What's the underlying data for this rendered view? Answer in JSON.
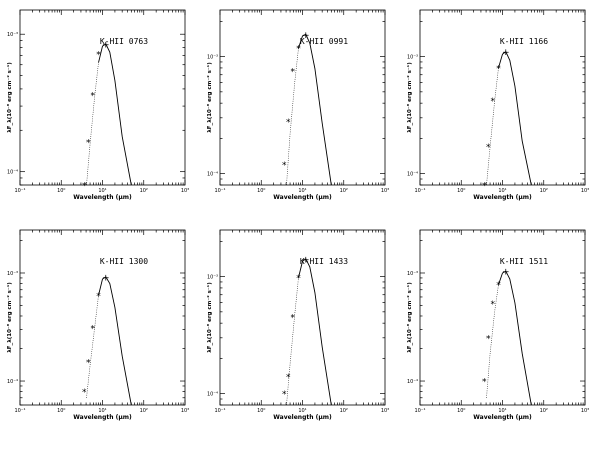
{
  "chart_data": [
    {
      "type": "line",
      "title": "K-HII 0763",
      "xlabel": "Wavelength (μm)",
      "ylabel": "λF_λ(10⁻⁸ erg cm⁻² s⁻¹)",
      "xscale": "log",
      "yscale": "log",
      "xlim": [
        0.1,
        1000
      ],
      "ylim": [
        8e-05,
        0.0015
      ],
      "xticks": [
        "10⁻¹",
        "10⁰",
        "10¹",
        "10²",
        "10³"
      ],
      "yticks": [
        "10⁻⁴",
        "10⁻³"
      ],
      "series": [
        {
          "x": [
            3.6,
            4.5,
            5.8,
            8.0
          ],
          "y": [
            8e-05,
            0.000165,
            0.00036,
            0.00072
          ]
        },
        {
          "x": [
            4.1,
            5.0,
            6.5,
            8.0,
            10,
            12,
            15,
            20,
            30,
            50
          ],
          "y": [
            8e-05,
            0.00016,
            0.00036,
            0.00062,
            0.00082,
            0.00085,
            0.00074,
            0.00046,
            0.00018,
            8e-05
          ]
        }
      ]
    },
    {
      "type": "line",
      "title": "K-HII 0991",
      "xlabel": "Wavelength (μm)",
      "ylabel": "λF_λ(10⁻⁸ erg cm⁻² s⁻¹)",
      "xscale": "log",
      "yscale": "log",
      "xlim": [
        0.1,
        1000
      ],
      "ylim": [
        8e-05,
        0.0025
      ],
      "xticks": [
        "10⁻¹",
        "10⁰",
        "10¹",
        "10²",
        "10³"
      ],
      "yticks": [
        "10⁻⁴",
        "10⁻³"
      ],
      "series": [
        {
          "x": [
            3.6,
            4.5,
            5.8,
            8.0
          ],
          "y": [
            0.00012,
            0.00028,
            0.00075,
            0.00118
          ]
        },
        {
          "x": [
            4.1,
            5.0,
            6.5,
            8.0,
            10,
            12,
            15,
            20,
            30,
            50
          ],
          "y": [
            8e-05,
            0.00022,
            0.00061,
            0.00118,
            0.0015,
            0.00155,
            0.0013,
            0.00079,
            0.00027,
            8e-05
          ]
        }
      ]
    },
    {
      "type": "line",
      "title": "K-HII 1166",
      "xlabel": "Wavelength (μm)",
      "ylabel": "λF_λ(10⁻⁸ erg cm⁻² s⁻¹)",
      "xscale": "log",
      "yscale": "log",
      "xlim": [
        0.1,
        1000
      ],
      "ylim": [
        8e-05,
        0.0025
      ],
      "xticks": [
        "10⁻¹",
        "10⁰",
        "10¹",
        "10²",
        "10³"
      ],
      "yticks": [
        "10⁻⁴",
        "10⁻³"
      ],
      "series": [
        {
          "x": [
            3.6,
            4.5,
            5.8,
            8.0
          ],
          "y": [
            8e-05,
            0.00017,
            0.00042,
            0.0008
          ]
        },
        {
          "x": [
            4.1,
            5.0,
            6.5,
            8.0,
            10,
            12,
            15,
            20,
            30,
            50
          ],
          "y": [
            8e-05,
            0.00017,
            0.00043,
            0.0008,
            0.00105,
            0.0011,
            0.00093,
            0.00056,
            0.00019,
            8e-05
          ]
        }
      ]
    },
    {
      "type": "line",
      "title": "K-HII 1300",
      "xlabel": "Wavelength (μm)",
      "ylabel": "λF_λ(10⁻⁸ erg cm⁻² s⁻¹)",
      "xscale": "log",
      "yscale": "log",
      "xlim": [
        0.1,
        1000
      ],
      "ylim": [
        6e-05,
        0.0025
      ],
      "xticks": [
        "10⁻¹",
        "10⁰",
        "10¹",
        "10²",
        "10³"
      ],
      "yticks": [
        "10⁻⁴",
        "10⁻³"
      ],
      "series": [
        {
          "x": [
            3.6,
            4.5,
            5.8,
            8.0
          ],
          "y": [
            8e-05,
            0.00015,
            0.00031,
            0.00062
          ]
        },
        {
          "x": [
            4.1,
            5.0,
            6.5,
            8.0,
            10,
            12,
            15,
            20,
            30,
            50
          ],
          "y": [
            7e-05,
            0.00014,
            0.00032,
            0.00062,
            0.00088,
            0.00092,
            0.0008,
            0.00048,
            0.00017,
            6e-05
          ]
        }
      ]
    },
    {
      "type": "line",
      "title": "K-HII 1433",
      "xlabel": "Wavelength (μm)",
      "ylabel": "λF_λ(10⁻⁸ erg cm⁻² s⁻¹)",
      "xscale": "log",
      "yscale": "log",
      "xlim": [
        0.1,
        1000
      ],
      "ylim": [
        8e-05,
        0.0025
      ],
      "xticks": [
        "10⁻¹",
        "10⁰",
        "10¹",
        "10²",
        "10³"
      ],
      "yticks": [
        "10⁻⁴",
        "10⁻³"
      ],
      "series": [
        {
          "x": [
            3.6,
            4.5,
            5.8,
            8.0
          ],
          "y": [
            0.0001,
            0.00014,
            0.00045,
            0.00098
          ]
        },
        {
          "x": [
            4.1,
            5.0,
            6.5,
            8.0,
            10,
            12,
            15,
            20,
            30,
            50
          ],
          "y": [
            8e-05,
            0.00018,
            0.00048,
            0.00098,
            0.00135,
            0.00142,
            0.00121,
            0.00073,
            0.00025,
            8e-05
          ]
        }
      ]
    },
    {
      "type": "line",
      "title": "K-HII 1511",
      "xlabel": "Wavelength (μm)",
      "ylabel": "λF_λ(10⁻⁸ erg cm⁻² s⁻¹)",
      "xscale": "log",
      "yscale": "log",
      "xlim": [
        0.1,
        1000
      ],
      "ylim": [
        6e-05,
        0.0025
      ],
      "xticks": [
        "10⁻¹",
        "10⁰",
        "10¹",
        "10²",
        "10³"
      ],
      "yticks": [
        "10⁻⁴",
        "10⁻³"
      ],
      "series": [
        {
          "x": [
            3.6,
            4.5,
            5.8,
            8.0
          ],
          "y": [
            0.0001,
            0.00025,
            0.00052,
            0.00078
          ]
        },
        {
          "x": [
            4.1,
            5.0,
            6.5,
            8.0,
            10,
            12,
            15,
            20,
            30,
            50
          ],
          "y": [
            7e-05,
            0.00018,
            0.00045,
            0.00078,
            0.001,
            0.00104,
            0.00088,
            0.00053,
            0.00018,
            6e-05
          ]
        }
      ]
    }
  ]
}
